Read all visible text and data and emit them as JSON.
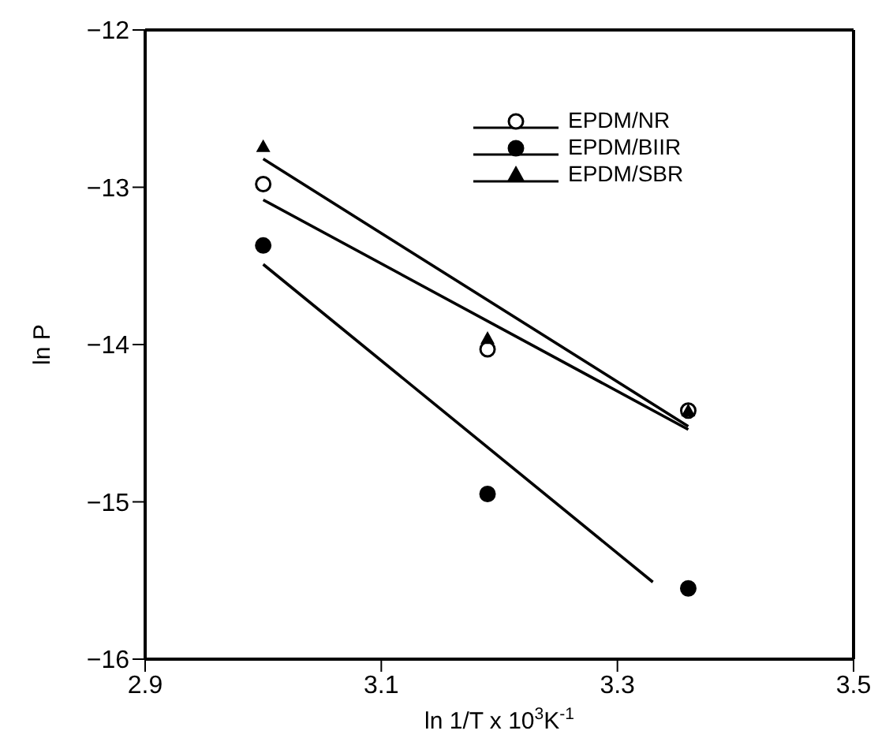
{
  "chart_data": {
    "type": "scatter",
    "xlabel": "ln 1/T x 10$^{3}$K$^{-1}$",
    "ylabel": "ln P",
    "xlim": [
      2.9,
      3.5
    ],
    "xticks": [
      2.9,
      3.1,
      3.3,
      3.5
    ],
    "ylim": [
      -16,
      -12
    ],
    "yticks": [
      -16,
      -15,
      -14,
      -13,
      -12
    ],
    "legend": "top right",
    "series": [
      {
        "name": "EPDM/NR",
        "marker": "circle",
        "color": "#000000",
        "x": [
          3.0,
          3.19,
          3.36
        ],
        "values": [
          -12.98,
          -14.03,
          -14.42
        ]
      },
      {
        "name": "EPDM/BIIR",
        "marker": "circle",
        "color": "#000000",
        "x": [
          3.0,
          3.19,
          3.36
        ],
        "values": [
          -13.37,
          -14.95,
          -15.55
        ]
      },
      {
        "name": "EPDM/SBR",
        "marker": "triangle",
        "color": "#000000",
        "x": [
          3.0,
          3.19,
          3.36
        ],
        "values": [
          -12.74,
          -13.96,
          -14.42
        ]
      },
      {
        "type": "line",
        "color": "#000000",
        "x": [
          3.0,
          3.36
        ],
        "values": [
          -13.08,
          -14.54
        ]
      },
      {
        "type": "line",
        "color": "#000000",
        "x": [
          3.0,
          3.33
        ],
        "values": [
          -13.49,
          -15.51
        ]
      },
      {
        "type": "line",
        "color": "#000000",
        "x": [
          3.0,
          3.36
        ],
        "values": [
          -12.82,
          -14.52
        ]
      }
    ]
  }
}
